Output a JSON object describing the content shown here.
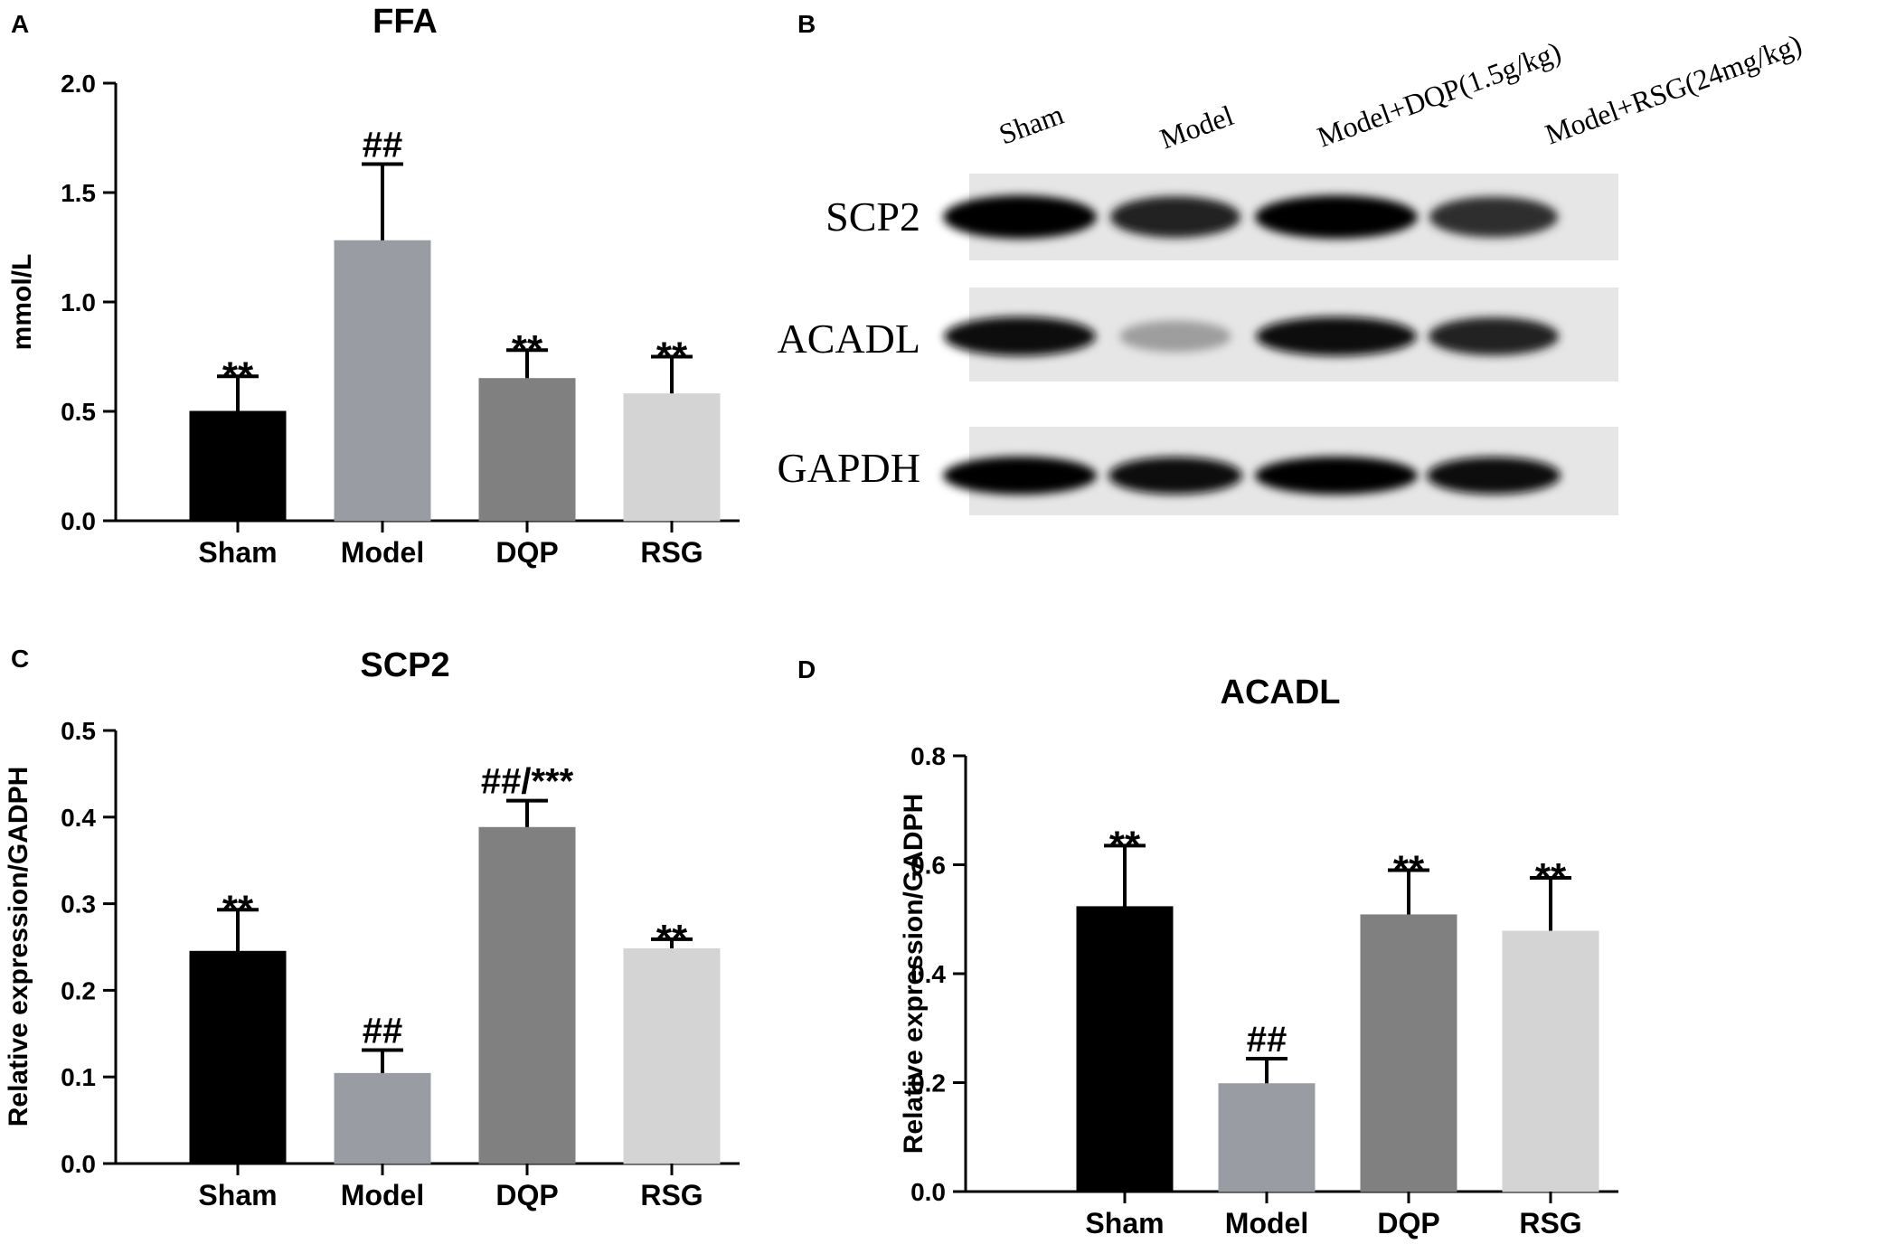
{
  "panels": {
    "A": {
      "letter": "A"
    },
    "B": {
      "letter": "B"
    },
    "C": {
      "letter": "C"
    },
    "D": {
      "letter": "D"
    }
  },
  "blot": {
    "lanes": [
      "Sham",
      "Model",
      "Model+DQP(1.5g/kg)",
      "Model+RSG(24mg/kg)"
    ],
    "proteins": [
      "SCP2",
      "ACADL",
      "GAPDH"
    ],
    "band_intensity": {
      "SCP2": [
        1.0,
        0.85,
        1.0,
        0.8
      ],
      "ACADL": [
        0.95,
        0.3,
        0.95,
        0.85
      ],
      "GAPDH": [
        1.0,
        0.95,
        1.0,
        0.95
      ]
    }
  },
  "colors": {
    "bars": [
      "#000000",
      "#9a9ca3",
      "#808080",
      "#d4d4d4"
    ]
  },
  "chart_data": [
    {
      "id": "A",
      "type": "bar",
      "title": "FFA",
      "ylabel": "mmol/L",
      "categories": [
        "Sham",
        "Model",
        "DQP",
        "RSG"
      ],
      "values": [
        0.5,
        1.28,
        0.65,
        0.58
      ],
      "errors": [
        0.16,
        0.35,
        0.13,
        0.17
      ],
      "annotations": [
        "**",
        "##",
        "**",
        "**"
      ],
      "ylim": [
        0,
        2.0
      ],
      "yticks": [
        0.0,
        0.5,
        1.0,
        1.5,
        2.0
      ],
      "ytick_labels": [
        "0.0",
        "0.5",
        "1.0",
        "1.5",
        "2.0"
      ]
    },
    {
      "id": "C",
      "type": "bar",
      "title": "SCP2",
      "ylabel": "Relative expression/GADPH",
      "categories": [
        "Sham",
        "Model",
        "DQP",
        "RSG"
      ],
      "values": [
        0.245,
        0.104,
        0.388,
        0.248
      ],
      "errors": [
        0.048,
        0.027,
        0.031,
        0.011
      ],
      "annotations": [
        "**",
        "##",
        "##/***",
        "**"
      ],
      "ylim": [
        0,
        0.5
      ],
      "yticks": [
        0.0,
        0.1,
        0.2,
        0.3,
        0.4,
        0.5
      ],
      "ytick_labels": [
        "0.0",
        "0.1",
        "0.2",
        "0.3",
        "0.4",
        "0.5"
      ]
    },
    {
      "id": "D",
      "type": "bar",
      "title": "ACADL",
      "ylabel": "Relative expression/GADPH",
      "categories": [
        "Sham",
        "Model",
        "DQP",
        "RSG"
      ],
      "values": [
        0.523,
        0.198,
        0.508,
        0.478
      ],
      "errors": [
        0.112,
        0.046,
        0.082,
        0.098
      ],
      "annotations": [
        "**",
        "##",
        "**",
        "**"
      ],
      "ylim": [
        0,
        0.8
      ],
      "yticks": [
        0.0,
        0.2,
        0.4,
        0.6,
        0.8
      ],
      "ytick_labels": [
        "0.0",
        "0.2",
        "0.4",
        "0.6",
        "0.8"
      ]
    }
  ]
}
